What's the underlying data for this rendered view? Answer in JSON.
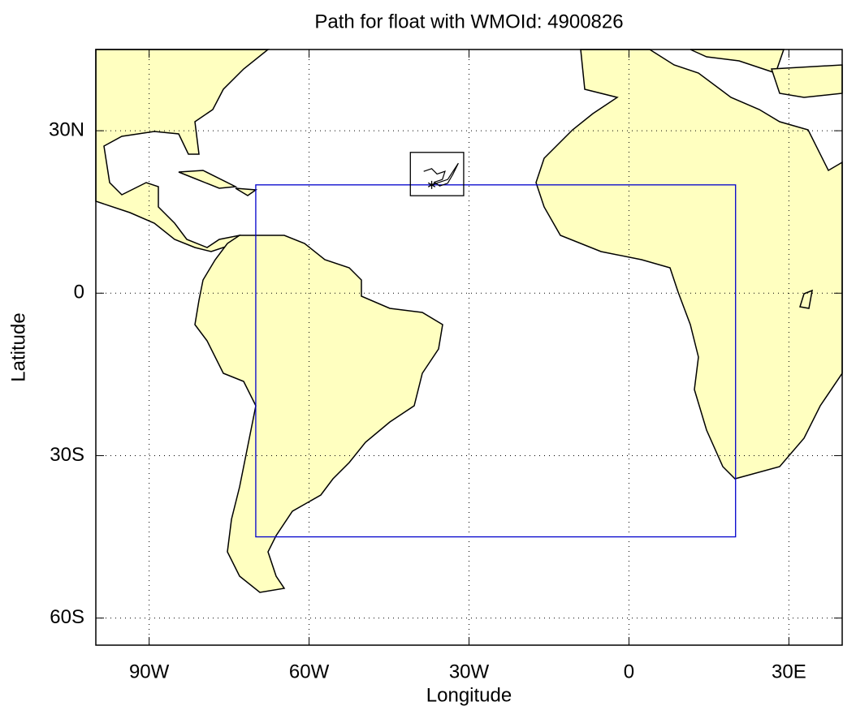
{
  "chart_data": {
    "type": "map",
    "title": "Path for float with WMOId: 4900826",
    "xlabel": "Longitude",
    "ylabel": "Latitude",
    "xlim": [
      -100,
      40
    ],
    "ylim": [
      -65,
      45
    ],
    "xticks": [
      {
        "value": -90,
        "label": "90W"
      },
      {
        "value": -60,
        "label": "60W"
      },
      {
        "value": -30,
        "label": "30W"
      },
      0,
      {
        "value": 30,
        "label": "30E"
      }
    ],
    "yticks": [
      {
        "value": 30,
        "label": "30N"
      },
      0,
      {
        "value": -30,
        "label": "30S"
      },
      {
        "value": -60,
        "label": "60S"
      }
    ],
    "grid": true,
    "boxes": [
      {
        "lon": [
          -70,
          20
        ],
        "lat": [
          -45,
          20
        ],
        "color": "#0000cc"
      },
      {
        "lon": [
          -41,
          -31
        ],
        "lat": [
          18,
          26
        ],
        "color": "#000000"
      }
    ],
    "track": {
      "x": [
        -38.5,
        -37,
        -36,
        -34.5,
        -35,
        -36.5,
        -35.5,
        -34,
        -33,
        -32,
        -34,
        -37
      ],
      "y": [
        22.5,
        23,
        22,
        22.5,
        21,
        20.5,
        19.8,
        20.3,
        22,
        24,
        21,
        20
      ],
      "color": "#000000"
    }
  }
}
